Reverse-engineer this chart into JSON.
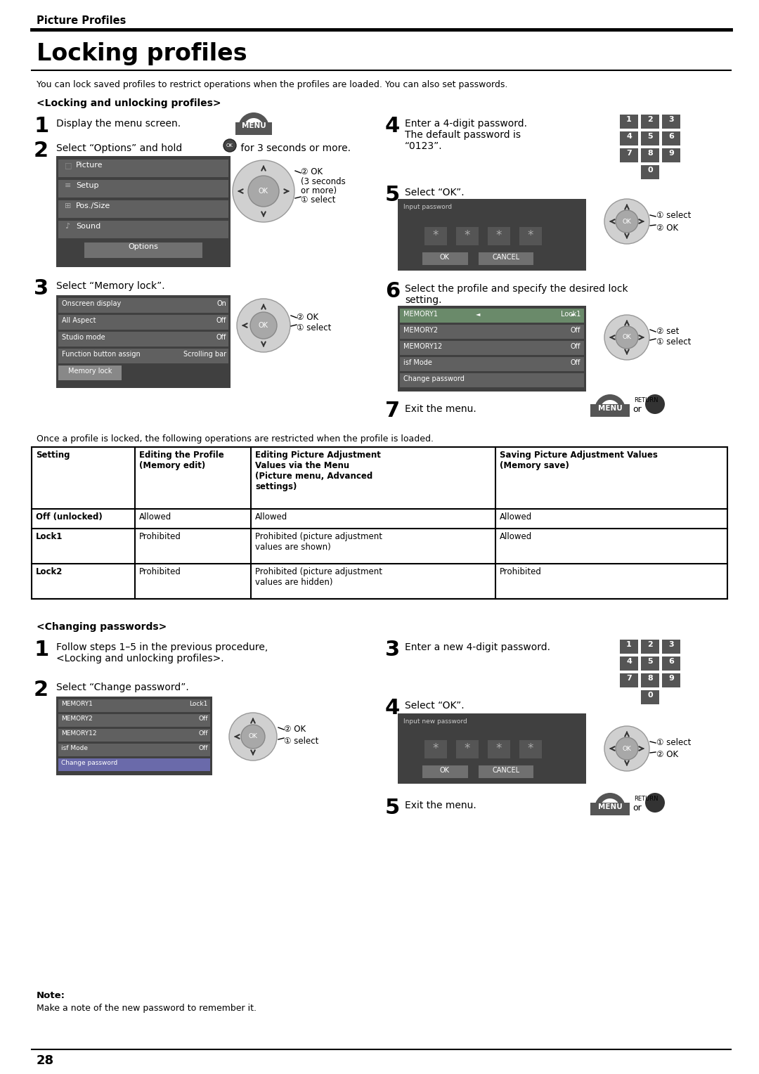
{
  "page_width": 10.8,
  "page_height": 15.28,
  "bg_color": "#ffffff",
  "header_text": "Picture Profiles",
  "title_text": "Locking profiles",
  "intro_text": "You can lock saved profiles to restrict operations when the profiles are loaded. You can also set passwords.",
  "section1_title": "<Locking and unlocking profiles>",
  "table_intro": "Once a profile is locked, the following operations are restricted when the profile is loaded.",
  "table_headers": [
    "Setting",
    "Editing the Profile\n(Memory edit)",
    "Editing Picture Adjustment\nValues via the Menu\n(Picture menu, Advanced\nsettings)",
    "Saving Picture Adjustment Values\n(Memory save)"
  ],
  "table_rows": [
    [
      "Off (unlocked)",
      "Allowed",
      "Allowed",
      "Allowed"
    ],
    [
      "Lock1",
      "Prohibited",
      "Prohibited (picture adjustment\nvalues are shown)",
      "Allowed"
    ],
    [
      "Lock2",
      "Prohibited",
      "Prohibited (picture adjustment\nvalues are hidden)",
      "Prohibited"
    ]
  ],
  "section2_title": "<Changing passwords>",
  "note_title": "Note:",
  "note_text": "Make a note of the new password to remember it.",
  "page_number": "28",
  "menu_items_2": [
    "Picture",
    "Setup",
    "Pos./Size",
    "Sound"
  ],
  "items3": [
    "Onscreen display",
    "All Aspect",
    "Studio mode",
    "Function button assign",
    "Memory lock"
  ],
  "vals3": [
    "On",
    "Off",
    "Off",
    "Scrolling bar",
    ""
  ],
  "items6": [
    [
      "MEMORY1",
      "Lock1",
      true
    ],
    [
      "MEMORY2",
      "Off",
      false
    ],
    [
      "MEMORY12",
      "Off",
      false
    ],
    [
      "isf Mode",
      "Off",
      false
    ],
    [
      "Change password",
      "",
      false
    ]
  ],
  "items_pm": [
    [
      "MEMORY1",
      "Lock1",
      false
    ],
    [
      "MEMORY2",
      "Off",
      false
    ],
    [
      "MEMORY12",
      "Off",
      false
    ],
    [
      "isf Mode",
      "Off",
      false
    ],
    [
      "Change password",
      "",
      true
    ]
  ]
}
